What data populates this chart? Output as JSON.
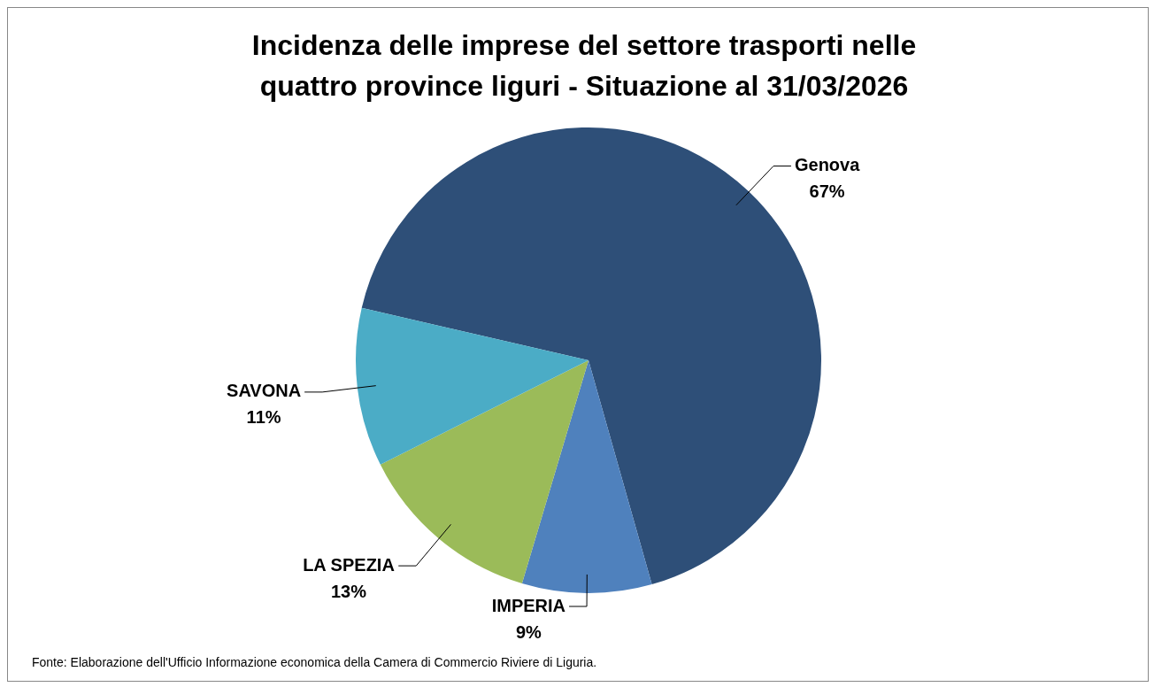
{
  "chart_data": {
    "type": "pie",
    "title": "Incidenza delle imprese del settore trasporti nelle quattro province liguri - Situazione al 31/03/2026",
    "categories": [
      "Genova",
      "IMPERIA",
      "LA SPEZIA",
      "SAVONA"
    ],
    "values": [
      67,
      9,
      13,
      11
    ],
    "colors": [
      "#2e4f78",
      "#4f81bd",
      "#9bbb59",
      "#4bacc6"
    ],
    "value_labels": [
      "67%",
      "9%",
      "13%",
      "11%"
    ],
    "legend": false,
    "annotations": [
      "Fonte: Elaborazione dell'Ufficio Informazione economica della Camera di Commercio Riviere di Liguria."
    ]
  }
}
